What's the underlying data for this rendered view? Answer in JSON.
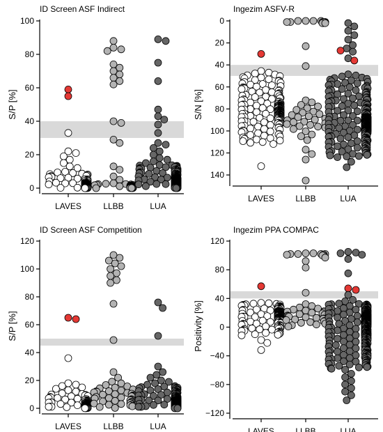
{
  "chart_data": [
    {
      "type": "scatter",
      "subtype": "beeswarm",
      "title": "ID Screen ASF Indirect",
      "xlabel": "",
      "ylabel": "S/P [%]",
      "categories": [
        "LAVES",
        "LLBB",
        "LUA"
      ],
      "ylim": [
        0,
        100
      ],
      "yticks": [
        0,
        20,
        40,
        60,
        80,
        100
      ],
      "y_inverted": false,
      "cutoff_band": [
        30,
        40
      ],
      "colors": {
        "LAVES": "#ffffff",
        "LLBB": "#b3b3b3",
        "LUA": "#666666",
        "highlight": "#e53935",
        "band": "#d9d9d9"
      },
      "groups": [
        {
          "name": "LAVES",
          "bulk": {
            "n": 120,
            "median": 1.5,
            "q1": 0.5,
            "q3": 3,
            "min": 0,
            "max": 10
          },
          "extra": [
            12,
            13,
            15,
            17,
            19,
            21,
            22,
            33
          ],
          "highlight": [
            59,
            55
          ]
        },
        {
          "name": "LLBB",
          "bulk": {
            "n": 45,
            "median": 0.8,
            "q1": 0.2,
            "q3": 1.5,
            "min": 0,
            "max": 3
          },
          "extra": [
            5,
            7,
            11,
            13,
            27,
            29,
            39,
            40,
            62,
            64,
            66,
            68,
            70,
            72,
            74,
            82,
            83,
            84,
            88
          ],
          "highlight": []
        },
        {
          "name": "LUA",
          "bulk": {
            "n": 260,
            "median": 3,
            "q1": 1.2,
            "q3": 5.5,
            "min": 0,
            "max": 14
          },
          "extra": [
            15,
            16,
            17,
            18,
            20,
            22,
            24,
            26,
            27,
            33,
            38,
            41,
            43,
            47,
            64,
            75,
            88,
            89
          ],
          "highlight": []
        }
      ]
    },
    {
      "type": "scatter",
      "subtype": "beeswarm",
      "title": "Ingezim ASFV-R",
      "xlabel": "",
      "ylabel": "S/N [%]",
      "categories": [
        "LAVES",
        "LLBB",
        "LUA"
      ],
      "ylim": [
        0,
        145
      ],
      "yticks": [
        0,
        20,
        40,
        60,
        80,
        100,
        120,
        140
      ],
      "y_inverted": true,
      "cutoff_band": [
        40,
        50
      ],
      "colors": {
        "LAVES": "#ffffff",
        "LLBB": "#b3b3b3",
        "LUA": "#666666",
        "highlight": "#e53935",
        "band": "#d9d9d9"
      },
      "groups": [
        {
          "name": "LAVES",
          "bulk": {
            "n": 200,
            "median": 82,
            "q1": 75,
            "q3": 88,
            "min": 45,
            "max": 112
          },
          "extra": [
            132
          ],
          "highlight": [
            30
          ]
        },
        {
          "name": "LLBB",
          "bulk": {
            "n": 28,
            "median": 90,
            "q1": 83,
            "q3": 96,
            "min": 71,
            "max": 110
          },
          "extra": [
            0,
            0,
            0,
            0,
            1,
            1,
            1,
            1,
            1,
            1,
            1,
            1,
            1,
            2,
            2,
            2,
            23,
            41,
            117,
            121,
            126,
            145
          ],
          "highlight": []
        },
        {
          "name": "LUA",
          "bulk": {
            "n": 300,
            "median": 93,
            "q1": 87,
            "q3": 100,
            "min": 48,
            "max": 124
          },
          "extra": [
            2,
            5,
            9,
            13,
            17,
            22,
            25,
            28,
            34,
            128,
            133
          ],
          "highlight": [
            27,
            36
          ]
        }
      ]
    },
    {
      "type": "scatter",
      "subtype": "beeswarm",
      "title": "ID Screen ASF Competition",
      "xlabel": "",
      "ylabel": "S/P [%]",
      "categories": [
        "LAVES",
        "LLBB",
        "LUA"
      ],
      "ylim": [
        0,
        120
      ],
      "yticks": [
        0,
        20,
        40,
        60,
        80,
        100,
        120
      ],
      "y_inverted": false,
      "cutoff_band": [
        45,
        50
      ],
      "colors": {
        "LAVES": "#ffffff",
        "LLBB": "#b3b3b3",
        "LUA": "#666666",
        "highlight": "#e53935",
        "band": "#d9d9d9"
      },
      "groups": [
        {
          "name": "LAVES",
          "bulk": {
            "n": 110,
            "median": 2,
            "q1": 0.8,
            "q3": 4,
            "min": 0,
            "max": 11
          },
          "extra": [
            12,
            13,
            14,
            15,
            16,
            17,
            18,
            36
          ],
          "highlight": [
            65,
            64
          ]
        },
        {
          "name": "LLBB",
          "bulk": {
            "n": 40,
            "median": 8,
            "q1": 4,
            "q3": 12,
            "min": 0,
            "max": 20
          },
          "extra": [
            22,
            26,
            49,
            75,
            90,
            92,
            95,
            97,
            100,
            102,
            104,
            106,
            108,
            110
          ],
          "highlight": []
        },
        {
          "name": "LUA",
          "bulk": {
            "n": 230,
            "median": 3,
            "q1": 1.2,
            "q3": 6,
            "min": 0,
            "max": 16
          },
          "extra": [
            17,
            18,
            19,
            20,
            22,
            24,
            26,
            30,
            52,
            72,
            76
          ],
          "highlight": []
        }
      ]
    },
    {
      "type": "scatter",
      "subtype": "beeswarm",
      "title": "Ingezim PPA COMPAC",
      "xlabel": "",
      "ylabel": "Positivity [%]",
      "categories": [
        "LAVES",
        "LLBB",
        "LUA"
      ],
      "ylim": [
        -120,
        120
      ],
      "yticks": [
        -120,
        -80,
        -40,
        0,
        40,
        80,
        120
      ],
      "y_inverted": false,
      "cutoff_band": [
        40,
        50
      ],
      "colors": {
        "LAVES": "#ffffff",
        "LLBB": "#b3b3b3",
        "LUA": "#666666",
        "highlight": "#e53935",
        "band": "#d9d9d9"
      },
      "groups": [
        {
          "name": "LAVES",
          "bulk": {
            "n": 180,
            "median": 15,
            "q1": 9,
            "q3": 21,
            "min": -12,
            "max": 34
          },
          "extra": [
            -18,
            -22,
            -32
          ],
          "highlight": [
            57
          ]
        },
        {
          "name": "LLBB",
          "bulk": {
            "n": 30,
            "median": 15,
            "q1": 9,
            "q3": 22,
            "min": 0,
            "max": 33
          },
          "extra": [
            48,
            83,
            92,
            97,
            100,
            101,
            101,
            101,
            102,
            102,
            102,
            102,
            103,
            103
          ],
          "highlight": []
        },
        {
          "name": "LUA",
          "bulk": {
            "n": 330,
            "median": 5,
            "q1": -15,
            "q3": 15,
            "min": -60,
            "max": 33
          },
          "extra": [
            -65,
            -70,
            -75,
            -80,
            -85,
            -90,
            -95,
            -102,
            36,
            38,
            45,
            75,
            95,
            101,
            103,
            104,
            105
          ],
          "highlight": [
            52,
            54
          ]
        }
      ]
    }
  ]
}
